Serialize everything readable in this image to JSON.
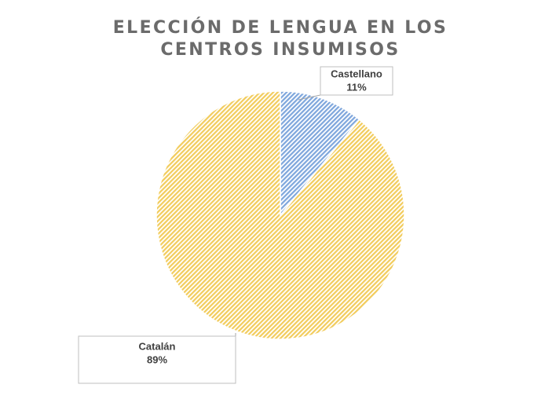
{
  "chart_data": {
    "type": "pie",
    "title": "ELECCIÓN DE LENGUA EN LOS CENTROS INSUMISOS",
    "categories": [
      "Castellano",
      "Catalán"
    ],
    "values": [
      11,
      89
    ],
    "value_labels": [
      "11%",
      "89%"
    ],
    "colors": [
      "#7ea6dc",
      "#f2cc5c"
    ]
  }
}
